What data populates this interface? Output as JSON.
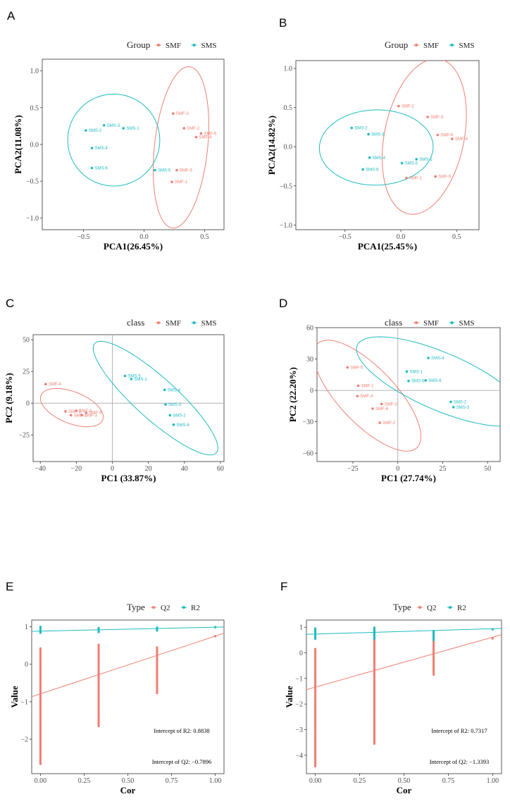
{
  "figure": {
    "panels": [
      "A",
      "B",
      "C",
      "D",
      "E",
      "F"
    ]
  },
  "colors": {
    "SMF": "#F07E73",
    "SMS": "#1EBBC1",
    "Q2": "#F07E73",
    "R2": "#1EBBC1",
    "zero_line": "#b3b3b3",
    "axis_text": "#4d4d4d"
  },
  "chart_data": [
    {
      "panel": "A",
      "type": "scatter",
      "legend_title": "Group",
      "legend_position": "top",
      "series": [
        {
          "name": "SMF",
          "points": [
            {
              "label": "SMF-3",
              "x": 0.24,
              "y": 0.42
            },
            {
              "label": "SMF-2",
              "x": 0.33,
              "y": 0.22
            },
            {
              "label": "SMF-6",
              "x": 0.47,
              "y": 0.15
            },
            {
              "label": "SMF-4",
              "x": 0.43,
              "y": 0.1
            },
            {
              "label": "SMF-5",
              "x": 0.27,
              "y": -0.35
            },
            {
              "label": "SMF-1",
              "x": 0.23,
              "y": -0.51
            }
          ]
        },
        {
          "name": "SMS",
          "points": [
            {
              "label": "SMS-3",
              "x": -0.33,
              "y": 0.26
            },
            {
              "label": "SMS-1",
              "x": -0.17,
              "y": 0.22
            },
            {
              "label": "SMS-2",
              "x": -0.48,
              "y": 0.19
            },
            {
              "label": "SMS-4",
              "x": -0.43,
              "y": -0.05
            },
            {
              "label": "SMS-6",
              "x": -0.43,
              "y": -0.32
            },
            {
              "label": "SMS-5",
              "x": 0.09,
              "y": -0.35
            }
          ]
        }
      ],
      "ellipses": [
        {
          "series": "SMF",
          "cx": 0.305,
          "cy": -0.04,
          "rx": 0.22,
          "ry": 1.1,
          "rot": -0.06
        },
        {
          "series": "SMS",
          "cx": -0.25,
          "cy": 0.06,
          "rx": 0.38,
          "ry": 0.625,
          "rot": 0.0
        }
      ],
      "xlim": [
        -0.84,
        0.66
      ],
      "ylim": [
        -1.16,
        1.16
      ],
      "xticks": [
        -0.5,
        0.0,
        0.5
      ],
      "xtick_labels": [
        "−0.5",
        "0.0",
        "0.5"
      ],
      "yticks": [
        -1.0,
        -0.5,
        0.0,
        0.5,
        1.0
      ],
      "ytick_labels": [
        "−1.0",
        "−0.5",
        "0.0",
        "0.5",
        "1.0"
      ],
      "xlabel": "PCA1(26.45%)",
      "ylabel": "PCA2(11.08%)",
      "zero_lines": false
    },
    {
      "panel": "B",
      "type": "scatter",
      "legend_title": "Group",
      "legend_position": "top",
      "series": [
        {
          "name": "SMF",
          "points": [
            {
              "label": "SMF-2",
              "x": -0.02,
              "y": 0.52
            },
            {
              "label": "SMF-3",
              "x": 0.24,
              "y": 0.38
            },
            {
              "label": "SMF-6",
              "x": 0.33,
              "y": 0.15
            },
            {
              "label": "SMF-4",
              "x": 0.46,
              "y": 0.1
            },
            {
              "label": "SMF-1",
              "x": 0.05,
              "y": -0.4
            },
            {
              "label": "SMF-5",
              "x": 0.31,
              "y": -0.38
            }
          ]
        },
        {
          "name": "SMS",
          "points": [
            {
              "label": "SMS-2",
              "x": -0.44,
              "y": 0.24
            },
            {
              "label": "SMS-3",
              "x": -0.29,
              "y": 0.16
            },
            {
              "label": "SMS-4",
              "x": -0.28,
              "y": -0.14
            },
            {
              "label": "SMS-1",
              "x": 0.14,
              "y": -0.16
            },
            {
              "label": "SMS-5",
              "x": 0.01,
              "y": -0.21
            },
            {
              "label": "SMS-6",
              "x": -0.34,
              "y": -0.29
            }
          ]
        }
      ],
      "ellipses": [
        {
          "series": "SMF",
          "cx": 0.21,
          "cy": 0.13,
          "rx": 0.36,
          "ry": 1.0,
          "rot": -0.12
        },
        {
          "series": "SMS",
          "cx": -0.22,
          "cy": -0.01,
          "rx": 0.51,
          "ry": 0.48,
          "rot": 0.15
        }
      ],
      "xlim": [
        -0.94,
        0.7
      ],
      "ylim": [
        -1.06,
        1.1
      ],
      "xticks": [
        -0.5,
        0.0,
        0.5
      ],
      "xtick_labels": [
        "−0.5",
        "0.0",
        "0.5"
      ],
      "yticks": [
        -1.0,
        -0.5,
        0.0,
        0.5,
        1.0
      ],
      "ytick_labels": [
        "−1.0",
        "−0.5",
        "0.0",
        "0.5",
        "1.0"
      ],
      "xlabel": "PCA1(25.45%)",
      "ylabel": "PCA2(14.82%)",
      "zero_lines": false
    },
    {
      "panel": "C",
      "type": "scatter",
      "legend_title": "class",
      "legend_position": "top",
      "series": [
        {
          "name": "SMF",
          "points": [
            {
              "label": "SMF-4",
              "x": -37,
              "y": 15
            },
            {
              "label": "SMF-5",
              "x": -26,
              "y": -6.5
            },
            {
              "label": "SMF-2",
              "x": -20,
              "y": -6
            },
            {
              "label": "SMF-1",
              "x": -23,
              "y": -9.5
            },
            {
              "label": "SMF-3",
              "x": -17,
              "y": -9.5
            },
            {
              "label": "SMF-6",
              "x": -14.5,
              "y": -7.5
            }
          ]
        },
        {
          "name": "SMS",
          "points": [
            {
              "label": "SMS-5",
              "x": 7,
              "y": 21.5
            },
            {
              "label": "SMS-1",
              "x": 10.5,
              "y": 19
            },
            {
              "label": "SMS-4",
              "x": 29,
              "y": 10.5
            },
            {
              "label": "SMS-3",
              "x": 29.5,
              "y": -1
            },
            {
              "label": "SMS-2",
              "x": 32,
              "y": -9.5
            },
            {
              "label": "SMS-6",
              "x": 34,
              "y": -17
            }
          ]
        }
      ],
      "ellipses": [
        {
          "series": "SMF",
          "cx": -22.5,
          "cy": -3.5,
          "rx": 20,
          "ry": 11.5,
          "rot": -0.64
        },
        {
          "series": "SMS",
          "cx": 24,
          "cy": 4,
          "rx": 55,
          "ry": 13.5,
          "rot": -0.93
        }
      ],
      "xlim": [
        -44,
        62
      ],
      "ylim": [
        -46,
        54
      ],
      "xticks": [
        -40,
        -20,
        0,
        20,
        40,
        60
      ],
      "xtick_labels": [
        "−40",
        "−20",
        "0",
        "20",
        "40",
        "60"
      ],
      "yticks": [
        -25,
        0,
        25,
        50
      ],
      "ytick_labels": [
        "−25",
        "0",
        "25",
        "50"
      ],
      "xlabel": "PC1 (33.87%)",
      "ylabel": "PC2 (9.18%)",
      "zero_lines": true
    },
    {
      "panel": "D",
      "type": "scatter",
      "legend_title": "class",
      "legend_position": "top",
      "series": [
        {
          "name": "SMF",
          "points": [
            {
              "label": "SMF-5",
              "x": -28,
              "y": 22
            },
            {
              "label": "SMF-1",
              "x": -22,
              "y": 4.5
            },
            {
              "label": "SMF-4",
              "x": -22.5,
              "y": -5.5
            },
            {
              "label": "SMF-3",
              "x": -9,
              "y": -13
            },
            {
              "label": "SMF-6",
              "x": -14,
              "y": -17.5
            },
            {
              "label": "SMF-2",
              "x": -10,
              "y": -31
            }
          ]
        },
        {
          "name": "SMS",
          "points": [
            {
              "label": "SMS-4",
              "x": 17,
              "y": 31
            },
            {
              "label": "SMS-1",
              "x": 5,
              "y": 18
            },
            {
              "label": "SMS-5",
              "x": 6,
              "y": 9
            },
            {
              "label": "SMS-6",
              "x": 15.5,
              "y": 9.5
            },
            {
              "label": "SMS-2",
              "x": 29.5,
              "y": -11
            },
            {
              "label": "SMS-3",
              "x": 31,
              "y": -16
            }
          ]
        }
      ],
      "ellipses": [
        {
          "series": "SMF",
          "cx": -17,
          "cy": -5,
          "rx": 58,
          "ry": 18.5,
          "rot": -1.13
        },
        {
          "series": "SMS",
          "cx": 24,
          "cy": 8.5,
          "rx": 59,
          "ry": 23.5,
          "rot": -0.72
        }
      ],
      "xlim": [
        -45,
        57
      ],
      "ylim": [
        -68,
        60
      ],
      "xticks": [
        -25,
        0,
        25,
        50
      ],
      "xtick_labels": [
        "−25",
        "0",
        "25",
        "50"
      ],
      "yticks": [
        -60,
        -30,
        0,
        30,
        60
      ],
      "ytick_labels": [
        "−60",
        "−30",
        "0",
        "30",
        "60"
      ],
      "xlabel": "PC1 (27.74%)",
      "ylabel": "PC2 (22.20%)",
      "zero_lines": true
    },
    {
      "panel": "E",
      "type": "scatter",
      "legend_title": "Type",
      "legend_position": "top",
      "series": [
        {
          "name": "Q2",
          "columns": [
            {
              "x": 0.0,
              "y_min": -2.66,
              "y_max": 0.42
            },
            {
              "x": 0.333,
              "y_min": -1.65,
              "y_max": 0.52
            },
            {
              "x": 0.667,
              "y_min": -0.77,
              "y_max": 0.45
            },
            {
              "x": 1.0,
              "y_min": 0.75,
              "y_max": 0.75
            }
          ]
        },
        {
          "name": "R2",
          "columns": [
            {
              "x": 0.0,
              "y_min": 0.84,
              "y_max": 1.0
            },
            {
              "x": 0.333,
              "y_min": 0.86,
              "y_max": 0.97
            },
            {
              "x": 0.667,
              "y_min": 0.9,
              "y_max": 0.98
            },
            {
              "x": 1.0,
              "y_min": 0.99,
              "y_max": 0.99
            }
          ]
        }
      ],
      "regression": [
        {
          "series": "R2",
          "intercept": 0.8838,
          "slope": 0.106
        },
        {
          "series": "Q2",
          "intercept": -0.7896,
          "slope": 1.54
        }
      ],
      "annotations": [
        "Intercept of R2: 0.8838",
        "Intercept of Q2: −0.7896"
      ],
      "xlim": [
        -0.05,
        1.05
      ],
      "ylim": [
        -2.92,
        1.18
      ],
      "xticks": [
        0.0,
        0.25,
        0.5,
        0.75,
        1.0
      ],
      "xtick_labels": [
        "0.00",
        "0.25",
        "0.50",
        "0.75",
        "1.00"
      ],
      "yticks": [
        -2,
        -1,
        0,
        1
      ],
      "ytick_labels": [
        "−2",
        "−1",
        "0",
        "1"
      ],
      "xlabel": "Cor",
      "ylabel": "Value",
      "zero_lines": false
    },
    {
      "panel": "F",
      "type": "scatter",
      "legend_title": "Type",
      "legend_position": "top",
      "series": [
        {
          "name": "Q2",
          "columns": [
            {
              "x": 0.0,
              "y_min": -4.43,
              "y_max": 0.15
            },
            {
              "x": 0.333,
              "y_min": -3.55,
              "y_max": 0.55
            },
            {
              "x": 0.667,
              "y_min": -0.85,
              "y_max": 0.45
            },
            {
              "x": 1.0,
              "y_min": 0.56,
              "y_max": 0.56
            }
          ]
        },
        {
          "name": "R2",
          "columns": [
            {
              "x": 0.0,
              "y_min": 0.55,
              "y_max": 0.95
            },
            {
              "x": 0.333,
              "y_min": 0.55,
              "y_max": 0.98
            },
            {
              "x": 0.667,
              "y_min": 0.5,
              "y_max": 0.85
            },
            {
              "x": 1.0,
              "y_min": 0.92,
              "y_max": 0.92
            }
          ]
        }
      ],
      "regression": [
        {
          "series": "R2",
          "intercept": 0.7317,
          "slope": 0.21
        },
        {
          "series": "Q2",
          "intercept": -1.3393,
          "slope": 1.95
        }
      ],
      "annotations": [
        "Intercept of R2: 0.7317",
        "Intercept of Q2: −1.3393"
      ],
      "xlim": [
        -0.05,
        1.05
      ],
      "ylim": [
        -4.72,
        1.28
      ],
      "xticks": [
        0.0,
        0.25,
        0.5,
        0.75,
        1.0
      ],
      "xtick_labels": [
        "0.00",
        "0.25",
        "0.50",
        "0.75",
        "1.00"
      ],
      "yticks": [
        -4,
        -3,
        -2,
        -1,
        0,
        1
      ],
      "ytick_labels": [
        "−4",
        "−3",
        "−2",
        "−1",
        "0",
        "1"
      ],
      "xlabel": "Cor",
      "ylabel": "Value",
      "zero_lines": false
    }
  ]
}
